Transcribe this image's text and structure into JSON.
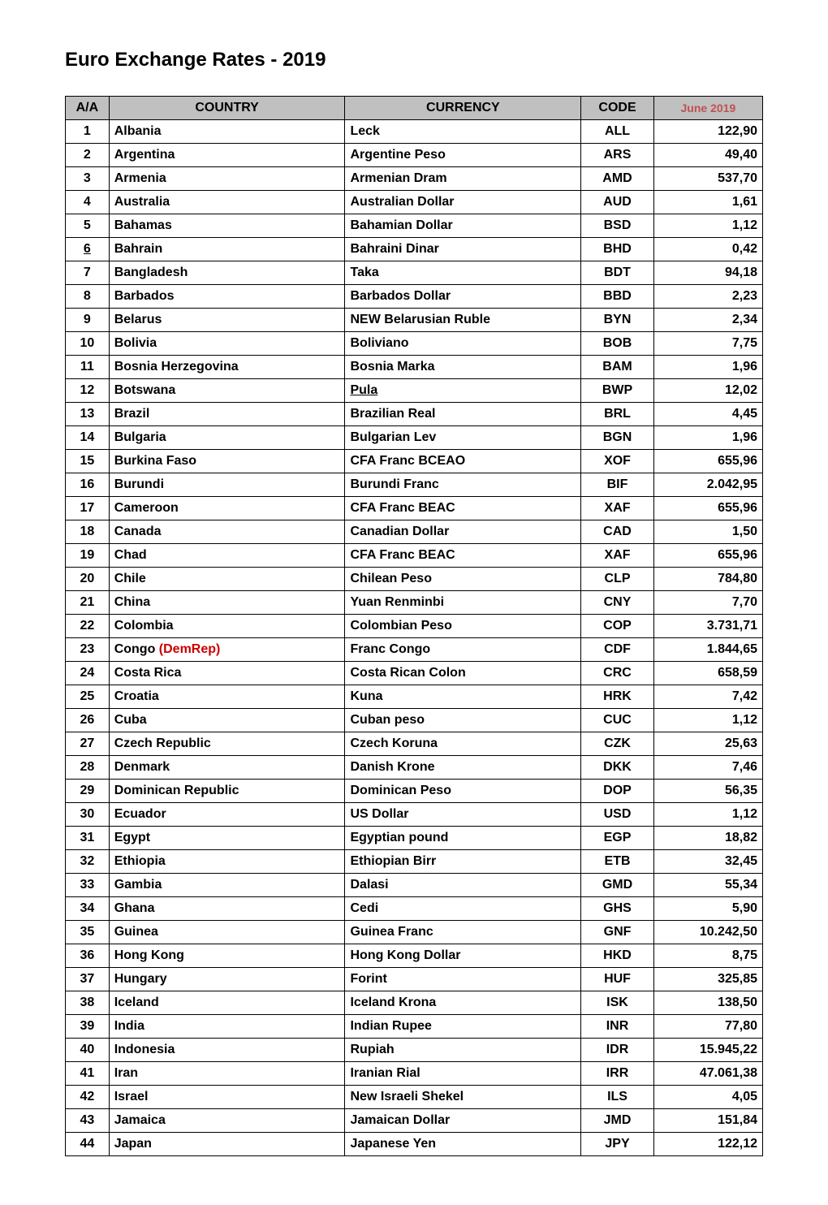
{
  "title": "Euro Exchange Rates - 2019",
  "table": {
    "columns": {
      "num": "A/A",
      "country": "COUNTRY",
      "currency": "CURRENCY",
      "code": "CODE",
      "rate": "June 2019"
    },
    "header_bg": "#c0c0c0",
    "rate_header_color": "#c05050",
    "demrep_color": "#cc0000",
    "rows": [
      {
        "n": "1",
        "country": "Albania",
        "currency": "Leck",
        "code": "ALL",
        "rate": "122,90"
      },
      {
        "n": "2",
        "country": "Argentina",
        "currency": "Argentine Peso",
        "code": "ARS",
        "rate": "49,40"
      },
      {
        "n": "3",
        "country": "Armenia",
        "currency": "Armenian Dram",
        "code": "AMD",
        "rate": "537,70"
      },
      {
        "n": "4",
        "country": "Australia",
        "currency": "Australian Dollar",
        "code": "AUD",
        "rate": "1,61"
      },
      {
        "n": "5",
        "country": "Bahamas",
        "currency": "Bahamian Dollar",
        "code": "BSD",
        "rate": "1,12"
      },
      {
        "n": "6",
        "country": "Bahrain",
        "currency": "Bahraini Dinar",
        "code": "BHD",
        "rate": "0,42",
        "n_underline": true
      },
      {
        "n": "7",
        "country": "Bangladesh",
        "currency": "Taka",
        "code": "BDT",
        "rate": "94,18"
      },
      {
        "n": "8",
        "country": "Barbados",
        "currency": "Barbados Dollar",
        "code": "BBD",
        "rate": "2,23"
      },
      {
        "n": "9",
        "country": "Belarus",
        "currency": "NEW Belarusian Ruble",
        "code": "BYN",
        "rate": "2,34"
      },
      {
        "n": "10",
        "country": "Bolivia",
        "currency": "Boliviano",
        "code": "BOB",
        "rate": "7,75"
      },
      {
        "n": "11",
        "country": "Bosnia Herzegovina",
        "currency": "Bosnia Marka",
        "code": "BAM",
        "rate": "1,96"
      },
      {
        "n": "12",
        "country": "Botswana",
        "currency": "Pula",
        "code": "BWP",
        "rate": "12,02",
        "currency_underline": true
      },
      {
        "n": "13",
        "country": "Brazil",
        "currency": "Brazilian Real",
        "code": "BRL",
        "rate": "4,45"
      },
      {
        "n": "14",
        "country": "Bulgaria",
        "currency": "Bulgarian Lev",
        "code": "BGN",
        "rate": "1,96"
      },
      {
        "n": "15",
        "country": "Burkina Faso",
        "currency": "CFA Franc BCEAO",
        "code": "XOF",
        "rate": "655,96"
      },
      {
        "n": "16",
        "country": "Burundi",
        "currency": "Burundi Franc",
        "code": "BIF",
        "rate": "2.042,95"
      },
      {
        "n": "17",
        "country": "Cameroon",
        "currency": "CFA Franc BEAC",
        "code": "XAF",
        "rate": "655,96"
      },
      {
        "n": "18",
        "country": "Canada",
        "currency": "Canadian Dollar",
        "code": "CAD",
        "rate": "1,50"
      },
      {
        "n": "19",
        "country": "Chad",
        "currency": "CFA Franc BEAC",
        "code": "XAF",
        "rate": "655,96"
      },
      {
        "n": "20",
        "country": "Chile",
        "currency": "Chilean Peso",
        "code": "CLP",
        "rate": "784,80"
      },
      {
        "n": "21",
        "country": "China",
        "currency": "Yuan Renminbi",
        "code": "CNY",
        "rate": "7,70"
      },
      {
        "n": "22",
        "country": "Colombia",
        "currency": "Colombian Peso",
        "code": "COP",
        "rate": "3.731,71"
      },
      {
        "n": "23",
        "country_prefix": "Congo ",
        "country_suffix": "(DemRep)",
        "currency": "Franc Congo",
        "code": "CDF",
        "rate": "1.844,65",
        "demrep": true
      },
      {
        "n": "24",
        "country": "Costa Rica",
        "currency": "Costa Rican Colon",
        "code": "CRC",
        "rate": "658,59"
      },
      {
        "n": "25",
        "country": "Croatia",
        "currency": "Kuna",
        "code": "HRK",
        "rate": "7,42"
      },
      {
        "n": "26",
        "country": "Cuba",
        "currency": "Cuban peso",
        "code": "CUC",
        "rate": "1,12"
      },
      {
        "n": "27",
        "country": "Czech Republic",
        "currency": "Czech Koruna",
        "code": "CZK",
        "rate": "25,63"
      },
      {
        "n": "28",
        "country": "Denmark",
        "currency": "Danish Krone",
        "code": "DKK",
        "rate": "7,46"
      },
      {
        "n": "29",
        "country": "Dominican Republic",
        "currency": "Dominican Peso",
        "code": "DOP",
        "rate": "56,35"
      },
      {
        "n": "30",
        "country": "Ecuador",
        "currency": "US Dollar",
        "code": "USD",
        "rate": "1,12"
      },
      {
        "n": "31",
        "country": "Egypt",
        "currency": "Egyptian pound",
        "code": "EGP",
        "rate": "18,82"
      },
      {
        "n": "32",
        "country": "Ethiopia",
        "currency": "Ethiopian Birr",
        "code": "ETB",
        "rate": "32,45"
      },
      {
        "n": "33",
        "country": "Gambia",
        "currency": "Dalasi",
        "code": "GMD",
        "rate": "55,34"
      },
      {
        "n": "34",
        "country": "Ghana",
        "currency": "Cedi",
        "code": "GHS",
        "rate": "5,90"
      },
      {
        "n": "35",
        "country": "Guinea",
        "currency": "Guinea Franc",
        "code": "GNF",
        "rate": "10.242,50"
      },
      {
        "n": "36",
        "country": "Hong Kong",
        "currency": "Hong Kong Dollar",
        "code": "HKD",
        "rate": "8,75"
      },
      {
        "n": "37",
        "country": "Hungary",
        "currency": "Forint",
        "code": "HUF",
        "rate": "325,85"
      },
      {
        "n": "38",
        "country": "Iceland",
        "currency": "Iceland Krona",
        "code": "ISK",
        "rate": "138,50"
      },
      {
        "n": "39",
        "country": "India",
        "currency": "Indian Rupee",
        "code": "INR",
        "rate": "77,80"
      },
      {
        "n": "40",
        "country": "Indonesia",
        "currency": "Rupiah",
        "code": "IDR",
        "rate": "15.945,22"
      },
      {
        "n": "41",
        "country": "Iran",
        "currency": "Iranian Rial",
        "code": "IRR",
        "rate": "47.061,38"
      },
      {
        "n": "42",
        "country": "Israel",
        "currency": "New Israeli Shekel",
        "code": "ILS",
        "rate": "4,05"
      },
      {
        "n": "43",
        "country": "Jamaica",
        "currency": "Jamaican Dollar",
        "code": "JMD",
        "rate": "151,84"
      },
      {
        "n": "44",
        "country": "Japan",
        "currency": "Japanese Yen",
        "code": "JPY",
        "rate": "122,12"
      }
    ]
  }
}
